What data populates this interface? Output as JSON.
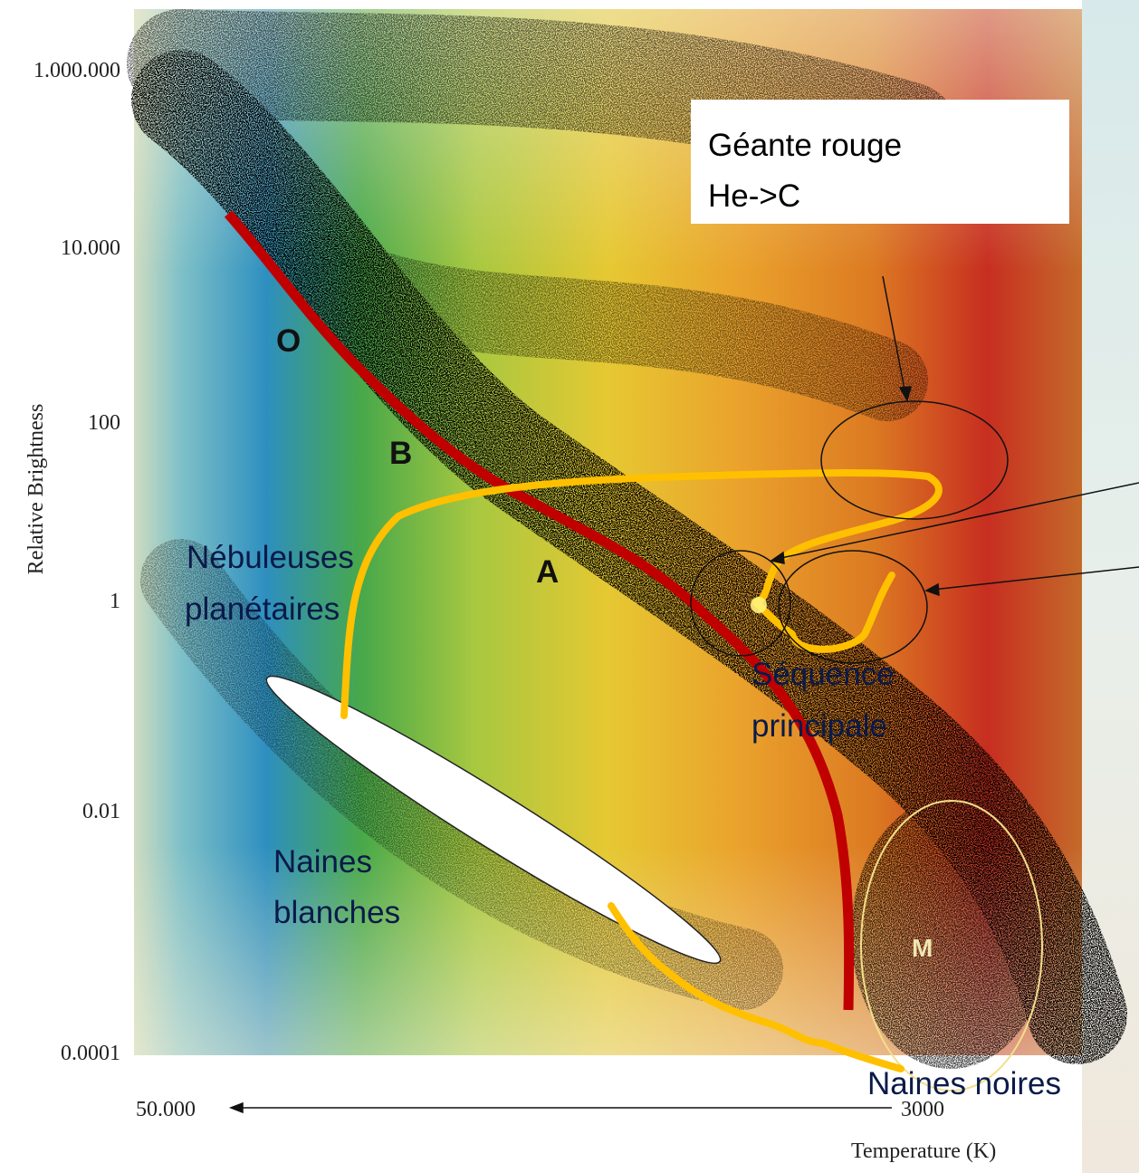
{
  "axes": {
    "y_label": "Relative Brightness",
    "y_ticks": [
      "1.000.000",
      "10.000",
      "100",
      "1",
      "0.01",
      "0.0001"
    ],
    "x_left": "50.000",
    "x_right": "3000",
    "x_label": "Temperature (K)"
  },
  "labels": {
    "red_giant_line1": "Géante rouge",
    "red_giant_line2": "He->C",
    "nebula_line1": "Nébuleuses",
    "nebula_line2": "planétaires",
    "main_seq_line1": "Séquence",
    "main_seq_line2": "principale",
    "white_dwarfs_line1": "Naines",
    "white_dwarfs_line2": "blanches",
    "black_dwarfs": "Naines noires",
    "class_o": "O",
    "class_b": "B",
    "class_a": "A",
    "class_m": "M"
  },
  "colors": {
    "evolution_track": "#ffc000",
    "main_sequence_line": "#c00000",
    "white_dwarf_region": "#ffffff"
  }
}
